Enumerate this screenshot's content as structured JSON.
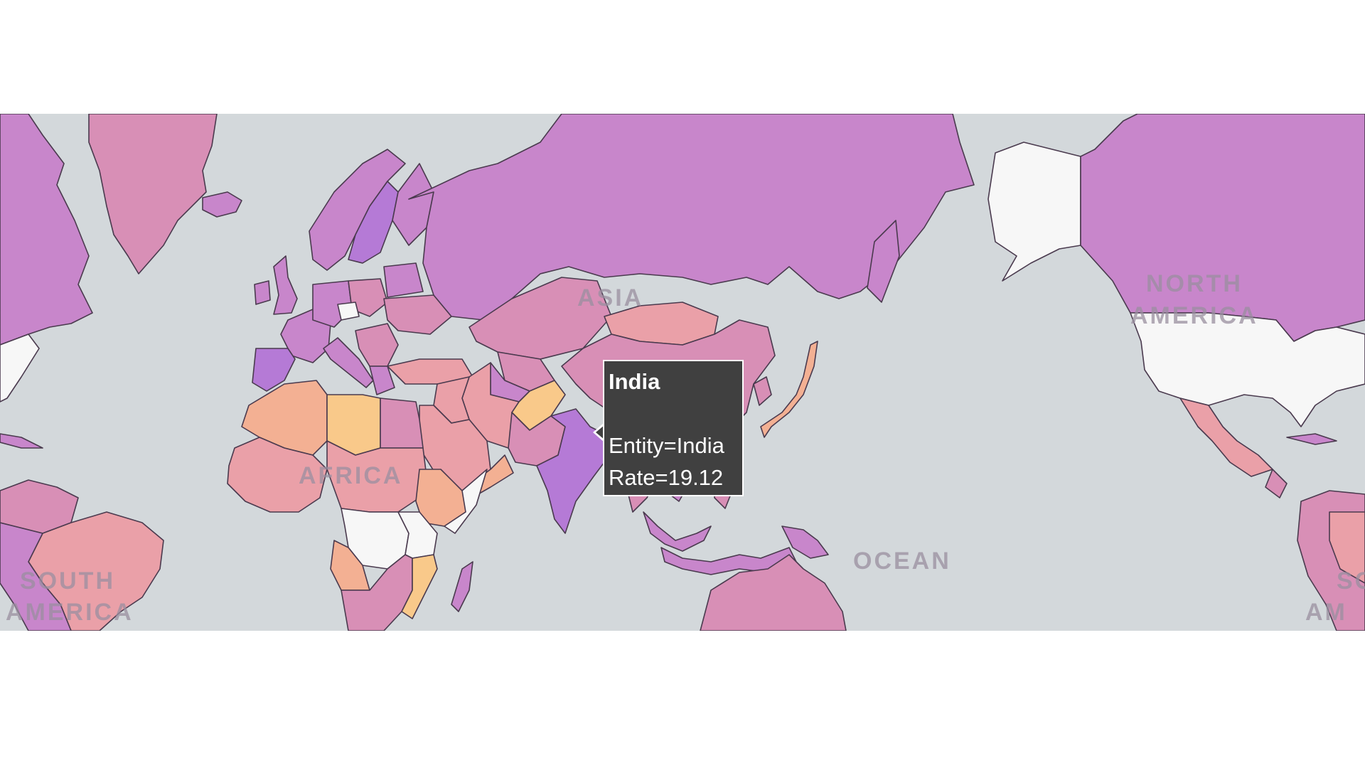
{
  "map": {
    "type": "choropleth",
    "colors": {
      "ocean": "#d3d8db",
      "no_data": "#f7f7f7",
      "scale": [
        "#f9c98a",
        "#f3b093",
        "#eaa0a8",
        "#d88fb6",
        "#c886cb",
        "#b57ad6"
      ]
    },
    "labels": {
      "asia": "ASIA",
      "north_america_1": "NORTH",
      "north_america_2": "AMERICA",
      "africa": "AFRICA",
      "oceania": "OCEAN",
      "south_america_1": "SOUTH",
      "south_america_2": "AMERICA",
      "south_america_right_1": "SO",
      "south_america_right_2": "AM"
    }
  },
  "tooltip": {
    "title": "India",
    "entity_line": "Entity=India",
    "rate_line": "Rate=19.12",
    "entity": "India",
    "rate": 19.12
  }
}
